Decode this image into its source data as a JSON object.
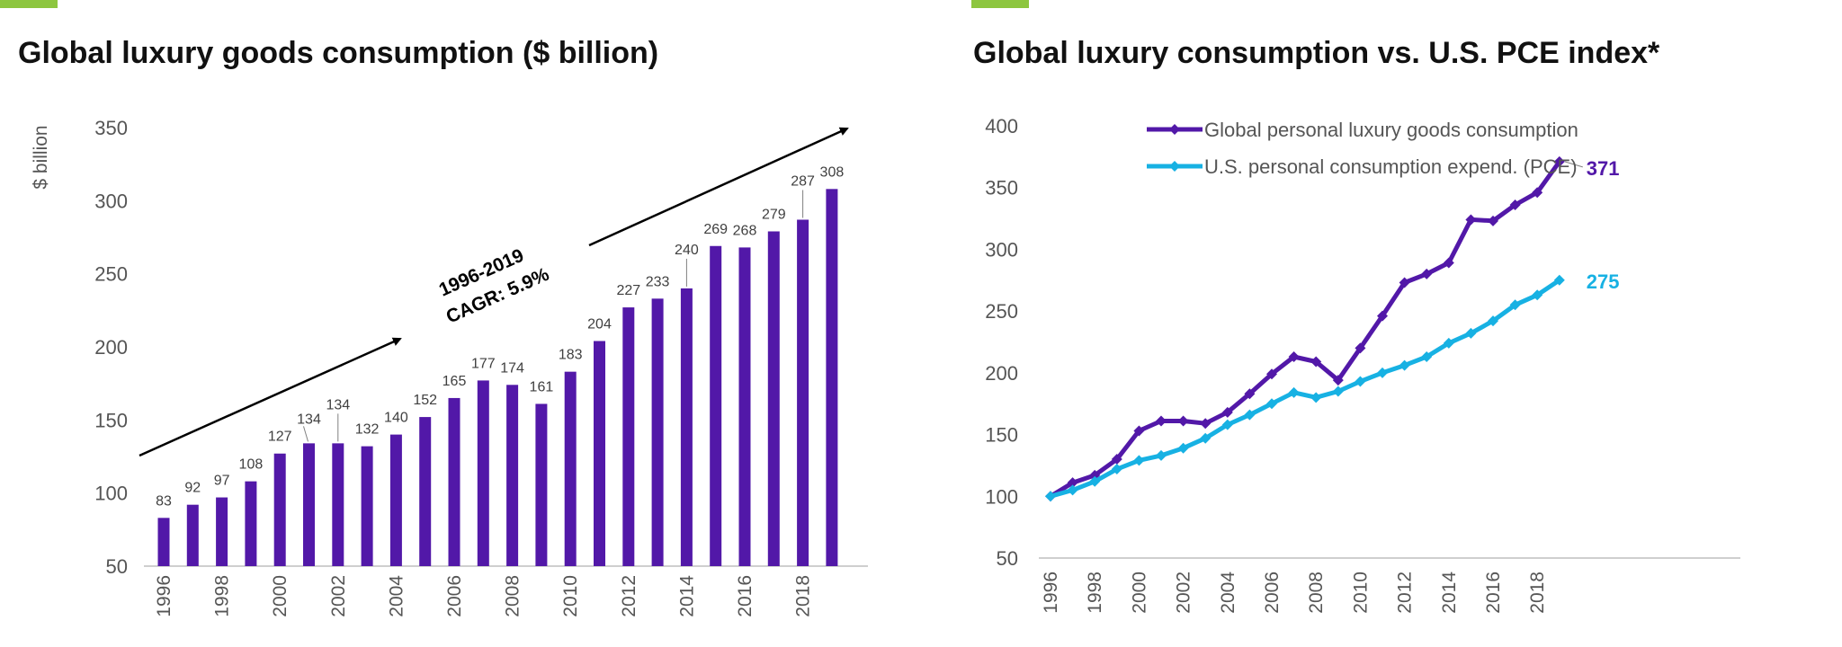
{
  "colors": {
    "accent": "#8dc63f",
    "purple": "#5218a8",
    "cyan": "#17b1e3",
    "axis": "#333333",
    "label": "#555555"
  },
  "chart_data": [
    {
      "type": "bar",
      "title": "Global luxury goods consumption ($ billion)",
      "ylabel": "$ billion",
      "xlabel": "",
      "ylim": [
        50,
        350
      ],
      "yticks": [
        50,
        100,
        150,
        200,
        250,
        300,
        350
      ],
      "categories": [
        "1996",
        "1997",
        "1998",
        "1999",
        "2000",
        "2001",
        "2002",
        "2003",
        "2004",
        "2005",
        "2006",
        "2007",
        "2008",
        "2009",
        "2010",
        "2011",
        "2012",
        "2013",
        "2014",
        "2015",
        "2016",
        "2017",
        "2018",
        "2019"
      ],
      "x_tick_labels": [
        "1996",
        "1998",
        "2000",
        "2002",
        "2004",
        "2006",
        "2008",
        "2010",
        "2012",
        "2014",
        "2016",
        "2018"
      ],
      "values": [
        83,
        92,
        97,
        108,
        127,
        134,
        134,
        132,
        140,
        152,
        165,
        177,
        174,
        161,
        183,
        204,
        227,
        233,
        240,
        269,
        268,
        279,
        287,
        308
      ],
      "annotation": {
        "line1": "1996-2019",
        "line2": "CAGR: 5.9%"
      },
      "grid": false
    },
    {
      "type": "line",
      "title": "Global luxury consumption vs. U.S. PCE index*",
      "ylim": [
        50,
        400
      ],
      "yticks": [
        50,
        100,
        150,
        200,
        250,
        300,
        350,
        400
      ],
      "x": [
        "1996",
        "1997",
        "1998",
        "1999",
        "2000",
        "2001",
        "2002",
        "2003",
        "2004",
        "2005",
        "2006",
        "2007",
        "2008",
        "2009",
        "2010",
        "2011",
        "2012",
        "2013",
        "2014",
        "2015",
        "2016",
        "2017",
        "2018",
        "2019"
      ],
      "x_tick_labels": [
        "1996",
        "1998",
        "2000",
        "2002",
        "2004",
        "2006",
        "2008",
        "2010",
        "2012",
        "2014",
        "2016",
        "2018"
      ],
      "legend_position": "top",
      "series": [
        {
          "name": "Global personal luxury goods consumption",
          "values": [
            100,
            111,
            117,
            130,
            153,
            161,
            161,
            159,
            168,
            183,
            199,
            213,
            209,
            194,
            220,
            246,
            273,
            280,
            289,
            324,
            323,
            336,
            346,
            371
          ],
          "end_label": "371"
        },
        {
          "name": "U.S. personal consumption expend. (PCE)",
          "values": [
            100,
            105,
            112,
            122,
            129,
            133,
            139,
            147,
            158,
            166,
            175,
            184,
            180,
            185,
            193,
            200,
            206,
            213,
            224,
            232,
            242,
            255,
            263,
            275
          ],
          "end_label": "275"
        }
      ],
      "grid": false
    }
  ]
}
